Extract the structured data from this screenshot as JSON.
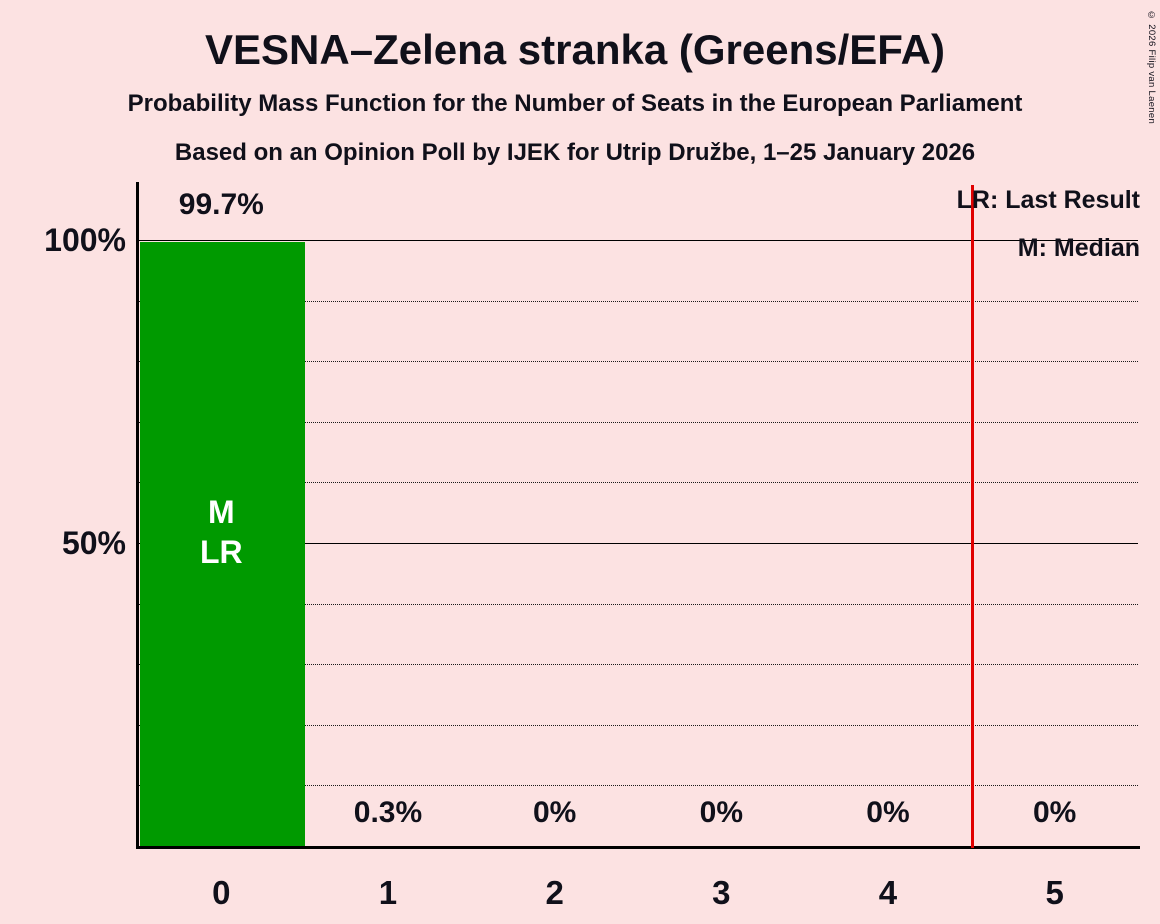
{
  "title": "VESNA–Zelena stranka (Greens/EFA)",
  "subtitle1": "Probability Mass Function for the Number of Seats in the European Parliament",
  "subtitle2": "Based on an Opinion Poll by IJEK for Utrip Družbe, 1–25 January 2026",
  "copyright": "© 2026 Filip van Laenen",
  "legend": {
    "last_result": "LR: Last Result",
    "median": "M: Median"
  },
  "chart_data": {
    "type": "bar",
    "title": "VESNA–Zelena stranka (Greens/EFA)",
    "categories": [
      "0",
      "1",
      "2",
      "3",
      "4",
      "5"
    ],
    "values": [
      99.7,
      0.3,
      0,
      0,
      0,
      0
    ],
    "value_labels": [
      "99.7%",
      "0.3%",
      "0%",
      "0%",
      "0%",
      "0%"
    ],
    "y_ticks": [
      {
        "value": 100,
        "label": "100%"
      },
      {
        "value": 50,
        "label": "50%"
      }
    ],
    "ylim": [
      0,
      100
    ],
    "grid": {
      "solid_at": [
        100,
        50
      ],
      "dotted_at": [
        90,
        80,
        70,
        60,
        40,
        30,
        20,
        10
      ]
    },
    "legend_position": "top-right",
    "bar_color": "#009A00",
    "background_color": "#FCE2E2",
    "median_bar_index": 0,
    "bar_annotation": [
      "M",
      "LR"
    ],
    "red_line": {
      "x_seats": 4.5,
      "color": "#E00000"
    }
  }
}
